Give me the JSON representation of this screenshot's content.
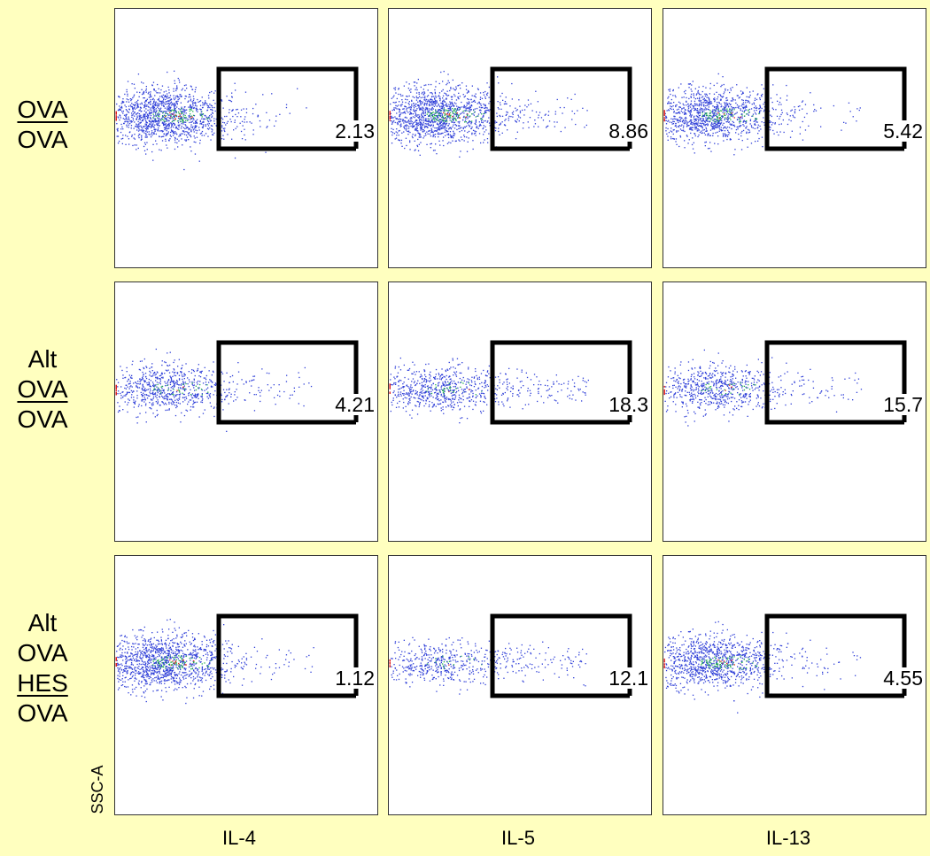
{
  "chart_data": {
    "type": "scatter",
    "title": "",
    "xlabel": "",
    "ylabel": "SSC-A",
    "columns": [
      {
        "label": "IL-4"
      },
      {
        "label": "IL-5"
      },
      {
        "label": "IL-13"
      }
    ],
    "rows": [
      {
        "label_lines": [
          {
            "text": "OVA",
            "underline": true
          },
          {
            "text": "OVA",
            "underline": false
          }
        ],
        "gate_values": [
          "2.13",
          "8.86",
          "5.42"
        ],
        "density": [
          1.0,
          1.0,
          0.85
        ]
      },
      {
        "label_lines": [
          {
            "text": "Alt",
            "underline": false
          },
          {
            "text": "OVA",
            "underline": true
          },
          {
            "text": "OVA",
            "underline": false
          }
        ],
        "gate_values": [
          "4.21",
          "18.3",
          "15.7"
        ],
        "density": [
          0.55,
          0.5,
          0.5
        ]
      },
      {
        "label_lines": [
          {
            "text": "Alt",
            "underline": false
          },
          {
            "text": "OVA",
            "underline": false
          },
          {
            "text": "HES",
            "underline": true
          },
          {
            "text": "OVA",
            "underline": false
          }
        ],
        "gate_values": [
          "1.12",
          "12.1",
          "4.55"
        ],
        "density": [
          0.95,
          0.35,
          0.8
        ]
      }
    ],
    "grid": false,
    "legend": "none",
    "point_colors": {
      "sparse": "#2f3fd8",
      "dense": "#22b14c",
      "peak": "#e02020",
      "gate": "#000000"
    }
  }
}
